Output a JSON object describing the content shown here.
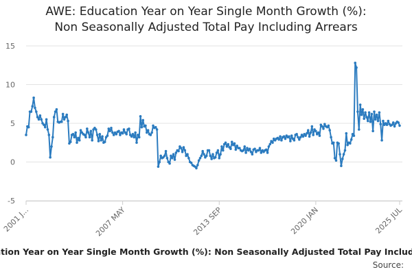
{
  "chart_data": {
    "type": "line",
    "title_lines": [
      "AWE: Education Year on Year Single Month Growth (%):",
      "Non Seasonally Adjusted Total Pay Including Arrears"
    ],
    "caption": "AWE: Education Year on Year Single Month Growth (%): Non Seasonally Adjusted Total Pay Including Arrears",
    "source": "Source:",
    "color": "#2b7bbf",
    "grid": true,
    "ylim": [
      -5,
      15
    ],
    "yticks": [
      -5,
      0,
      5,
      10,
      15
    ],
    "categories": [
      "2001 J...",
      null,
      null,
      null,
      null,
      null,
      null,
      null,
      null,
      null,
      null,
      null,
      null,
      null,
      null,
      null,
      null,
      null,
      null,
      null,
      null,
      null,
      null,
      null,
      null,
      null,
      null,
      null,
      null,
      null,
      null,
      null,
      null,
      null,
      null,
      null,
      null,
      null,
      null,
      null,
      null,
      null,
      null,
      null,
      null,
      null,
      null,
      null,
      null,
      null,
      null,
      null,
      null,
      null,
      null,
      null,
      null,
      null,
      null,
      null,
      null,
      null,
      null,
      null,
      null,
      null,
      null,
      null,
      null,
      null,
      null,
      null,
      null,
      null,
      null,
      null,
      "2007 MAY",
      null,
      null,
      null,
      null,
      null,
      null,
      null,
      null,
      null,
      null,
      null,
      null,
      null,
      null,
      null,
      null,
      null,
      null,
      null,
      null,
      null,
      null,
      null,
      null,
      null,
      null,
      null,
      null,
      null,
      null,
      null,
      null,
      null,
      null,
      null,
      null,
      null,
      null,
      null,
      null,
      null,
      null,
      null,
      null,
      null,
      null,
      null,
      null,
      null,
      null,
      null,
      null,
      null,
      null,
      null,
      null,
      null,
      null,
      null,
      null,
      null,
      null,
      null,
      null,
      null,
      null,
      null,
      null,
      null,
      null,
      null,
      null,
      null,
      null,
      null,
      "2013 SEP",
      null,
      null,
      null,
      null,
      null,
      null,
      null,
      null,
      null,
      null,
      null,
      null,
      null,
      null,
      null,
      null,
      null,
      null,
      null,
      null,
      null,
      null,
      null,
      null,
      null,
      null,
      null,
      null,
      null,
      null,
      null,
      null,
      null,
      null,
      null,
      null,
      null,
      null,
      null,
      null,
      null,
      null,
      null,
      null,
      null,
      null,
      null,
      null,
      null,
      null,
      null,
      null,
      null,
      null,
      null,
      null,
      null,
      null,
      null,
      null,
      null,
      null,
      null,
      null,
      null,
      null,
      null,
      null,
      null,
      null,
      null,
      null,
      null,
      null,
      null,
      "2020 JAN",
      null,
      null,
      null,
      null,
      null,
      null,
      null,
      null,
      null,
      null,
      null,
      null,
      null,
      null,
      null,
      null,
      null,
      null,
      null,
      null,
      null,
      null,
      null,
      null,
      null,
      null,
      null,
      null,
      null,
      null,
      null,
      null,
      null,
      null,
      null,
      null,
      null,
      null,
      null,
      null,
      null,
      null,
      null,
      null,
      null,
      null,
      null,
      null,
      null,
      null,
      null,
      null,
      null,
      null,
      null,
      null,
      null,
      null,
      null,
      null,
      null,
      null,
      null,
      null,
      null,
      "2025 JUL"
    ],
    "values": [
      3.5,
      4.6,
      4.5,
      6.5,
      6.5,
      7.2,
      8.3,
      7,
      6.5,
      5.8,
      5.5,
      6,
      5.5,
      5,
      4.8,
      4.5,
      5.5,
      4.2,
      3.5,
      0.6,
      2,
      3.2,
      5.8,
      6.5,
      6.8,
      5.2,
      5.1,
      5.2,
      5.2,
      6.2,
      5.5,
      5.8,
      6.1,
      5.3,
      2.4,
      2.6,
      3.5,
      3.6,
      3.2,
      3.8,
      2.5,
      3.1,
      2.8,
      4.1,
      3.8,
      3.6,
      3.5,
      3.2,
      4.3,
      3.8,
      3.2,
      4,
      2.8,
      4.2,
      4.4,
      4.2,
      3.5,
      2.7,
      3.6,
      2.8,
      3.3,
      2.5,
      2.6,
      3.2,
      3.4,
      4.3,
      4,
      4.4,
      3.8,
      3.5,
      3.8,
      3.6,
      3.9,
      4,
      3.5,
      3.8,
      3.7,
      4.2,
      3.8,
      3.6,
      4.2,
      4.3,
      3.5,
      3.3,
      3.6,
      3.2,
      3.8,
      2.5,
      3.5,
      3.2,
      5.9,
      4.5,
      5.4,
      4.6,
      4.7,
      3.8,
      4.1,
      3.6,
      3.5,
      3.8,
      4.7,
      4.4,
      4.5,
      4.2,
      -0.6,
      0,
      0.8,
      0.5,
      0.6,
      0.8,
      1.4,
      0.5,
      0,
      -0.2,
      0.8,
      0.5,
      1,
      0.3,
      1.2,
      1.5,
      1.4,
      2,
      1.8,
      1.3,
      1.9,
      1.5,
      0.8,
      1,
      0.5,
      0,
      -0.1,
      -0.4,
      -0.5,
      -0.6,
      -0.8,
      -0.4,
      0.2,
      0.5,
      0.8,
      1.4,
      1,
      0.6,
      0.8,
      1.5,
      1.5,
      0.8,
      0.4,
      1,
      0.5,
      0.6,
      1.2,
      1.5,
      0.5,
      1,
      2,
      1.5,
      2.3,
      2.5,
      2,
      2.3,
      1.9,
      1.7,
      2.6,
      2.2,
      2.4,
      1.6,
      2.1,
      1.8,
      1.8,
      1.5,
      1.4,
      1.5,
      2,
      1.2,
      1.8,
      1.5,
      1.7,
      1.3,
      1,
      1.6,
      1.7,
      1.3,
      1.5,
      1.5,
      1.8,
      1.2,
      1.5,
      1.3,
      1.5,
      1.6,
      1.2,
      2,
      2.3,
      2.7,
      2.5,
      3,
      2.8,
      3,
      3.1,
      2.9,
      3.3,
      2.8,
      3.2,
      3.3,
      3,
      3.4,
      3.2,
      3.3,
      2.7,
      3.4,
      3,
      2.8,
      3.5,
      3.6,
      3.2,
      2.9,
      3.2,
      3.5,
      3.3,
      3.6,
      3.4,
      3.7,
      4.1,
      3.3,
      3.8,
      4.6,
      3.5,
      4.2,
      4,
      3.6,
      3.8,
      3.4,
      4.8,
      4.6,
      4.3,
      4.9,
      4.6,
      4.5,
      4.7,
      4.1,
      3.2,
      2.4,
      2.5,
      0.5,
      0.2,
      2.5,
      2.4,
      1,
      -0.5,
      0.4,
      1,
      1.5,
      3.7,
      2.2,
      2.5,
      2.4,
      2.9,
      3.6,
      3.4,
      12.8,
      12.2,
      6.5,
      4.2,
      7.4,
      6.1,
      6.8,
      5.6,
      6.4,
      5.8,
      5.3,
      6.4,
      5.2,
      6.2,
      4,
      6.5,
      5.5,
      6.1,
      5.3,
      6.4,
      4.9,
      2.8,
      5.3,
      4.8,
      5,
      4.8,
      5.3,
      4.9,
      4.7,
      4.8,
      5.1,
      4.6,
      5,
      5.2,
      5.1,
      4.7
    ]
  }
}
